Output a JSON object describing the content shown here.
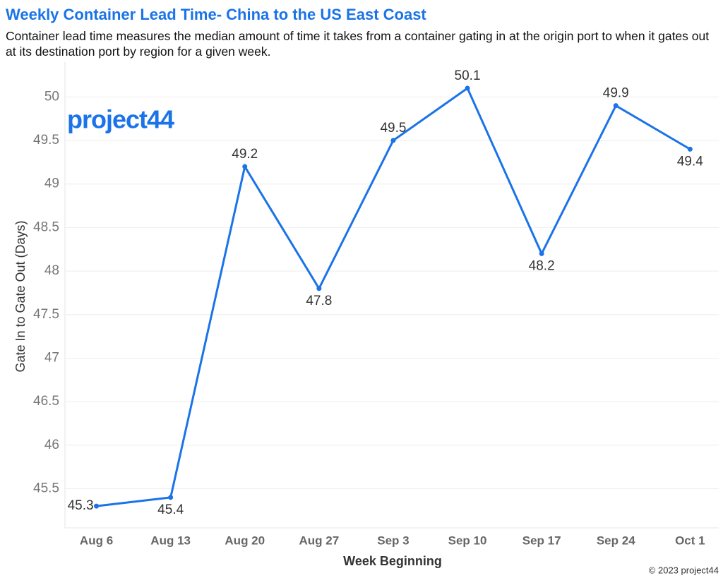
{
  "chart_data": {
    "type": "line",
    "title": "Weekly Container Lead Time- China to the US East Coast",
    "subtitle": "Container lead time measures the median amount of time it takes from a container gating in at the origin port to when it gates out at its destination port by region for a given week.",
    "x_label": "Week Beginning",
    "y_label": "Gate In to Gate Out (Days)",
    "logo": "project44",
    "footer": "© 2023 project44",
    "categories": [
      "Aug 6",
      "Aug 13",
      "Aug 20",
      "Aug 27",
      "Sep 3",
      "Sep 10",
      "Sep 17",
      "Sep 24",
      "Oct 1"
    ],
    "values": [
      45.3,
      45.4,
      49.2,
      47.8,
      49.5,
      50.1,
      48.2,
      49.9,
      49.4
    ],
    "color": "#1a73e8",
    "ylim": [
      45.05,
      50.4
    ],
    "yticks": [
      45.5,
      46,
      46.5,
      47,
      47.5,
      48,
      48.5,
      49,
      49.5,
      50
    ],
    "grid": true
  }
}
